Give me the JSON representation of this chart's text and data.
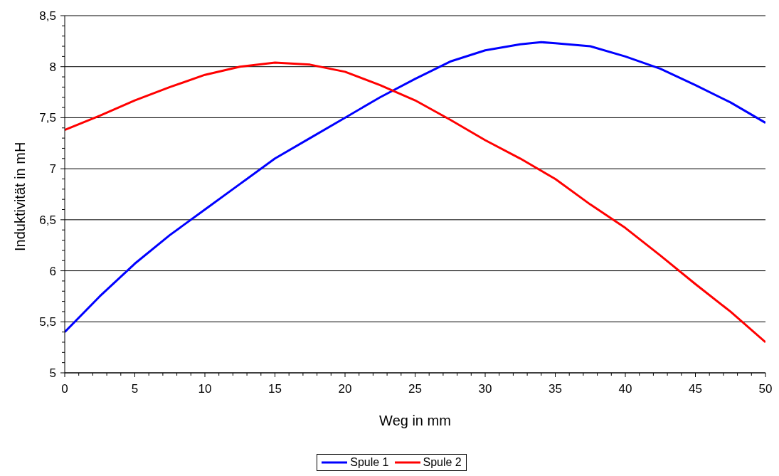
{
  "chart_data": {
    "type": "line",
    "xlabel": "Weg in mm",
    "ylabel": "Induktivität in mH",
    "x": [
      0,
      2.5,
      5,
      7.5,
      10,
      12.5,
      15,
      17.5,
      20,
      22.5,
      25,
      27.5,
      30,
      32.5,
      34,
      35,
      37.5,
      40,
      42.5,
      45,
      47.5,
      50
    ],
    "series": [
      {
        "name": "Spule 1",
        "color": "#0000ff",
        "values": [
          5.4,
          5.75,
          6.07,
          6.35,
          6.6,
          6.85,
          7.1,
          7.3,
          7.5,
          7.7,
          7.88,
          8.05,
          8.16,
          8.22,
          8.24,
          8.23,
          8.2,
          8.1,
          7.98,
          7.82,
          7.65,
          7.45
        ]
      },
      {
        "name": "Spule 2",
        "color": "#ff0000",
        "values": [
          7.38,
          7.52,
          7.67,
          7.8,
          7.92,
          8.0,
          8.04,
          8.02,
          7.95,
          7.82,
          7.67,
          7.48,
          7.28,
          7.1,
          6.98,
          6.9,
          6.65,
          6.42,
          6.15,
          5.87,
          5.6,
          5.3
        ]
      }
    ],
    "xlim": [
      0,
      50
    ],
    "xticks": [
      0,
      {
        "value": 1,
        "label": null
      },
      {
        "value": 2,
        "label": null
      },
      {
        "value": 3,
        "label": null
      },
      {
        "value": 4,
        "label": null
      },
      5,
      {
        "value": 6,
        "label": null
      },
      {
        "value": 7,
        "label": null
      },
      {
        "value": 8,
        "label": null
      },
      {
        "value": 9,
        "label": null
      },
      10,
      {
        "value": 11,
        "label": null
      },
      {
        "value": 12,
        "label": null
      },
      {
        "value": 13,
        "label": null
      },
      {
        "value": 14,
        "label": null
      },
      15,
      {
        "value": 16,
        "label": null
      },
      {
        "value": 17,
        "label": null
      },
      {
        "value": 18,
        "label": null
      },
      {
        "value": 19,
        "label": null
      },
      20,
      {
        "value": 21,
        "label": null
      },
      {
        "value": 22,
        "label": null
      },
      {
        "value": 23,
        "label": null
      },
      {
        "value": 24,
        "label": null
      },
      25,
      {
        "value": 26,
        "label": null
      },
      {
        "value": 27,
        "label": null
      },
      {
        "value": 28,
        "label": null
      },
      {
        "value": 29,
        "label": null
      },
      30,
      {
        "value": 31,
        "label": null
      },
      {
        "value": 32,
        "label": null
      },
      {
        "value": 33,
        "label": null
      },
      {
        "value": 34,
        "label": null
      },
      35,
      {
        "value": 36,
        "label": null
      },
      {
        "value": 37,
        "label": null
      },
      {
        "value": 38,
        "label": null
      },
      {
        "value": 39,
        "label": null
      },
      40,
      {
        "value": 41,
        "label": null
      },
      {
        "value": 42,
        "label": null
      },
      {
        "value": 43,
        "label": null
      },
      {
        "value": 44,
        "label": null
      },
      45,
      {
        "value": 46,
        "label": null
      },
      {
        "value": 47,
        "label": null
      },
      {
        "value": 48,
        "label": null
      },
      {
        "value": 49,
        "label": null
      },
      50
    ],
    "ylim": [
      5,
      8.5
    ],
    "yticks": [
      5,
      {
        "value": 5.1,
        "label": null
      },
      {
        "value": 5.2,
        "label": null
      },
      {
        "value": 5.3,
        "label": null
      },
      {
        "value": 5.4,
        "label": null
      },
      {
        "value": 5.5,
        "label": "5,5"
      },
      {
        "value": 5.6,
        "label": null
      },
      {
        "value": 5.7,
        "label": null
      },
      {
        "value": 5.8,
        "label": null
      },
      {
        "value": 5.9,
        "label": null
      },
      6,
      {
        "value": 6.1,
        "label": null
      },
      {
        "value": 6.2,
        "label": null
      },
      {
        "value": 6.3,
        "label": null
      },
      {
        "value": 6.4,
        "label": null
      },
      {
        "value": 6.5,
        "label": "6,5"
      },
      {
        "value": 6.6,
        "label": null
      },
      {
        "value": 6.7,
        "label": null
      },
      {
        "value": 6.8,
        "label": null
      },
      {
        "value": 6.9,
        "label": null
      },
      7,
      {
        "value": 7.1,
        "label": null
      },
      {
        "value": 7.2,
        "label": null
      },
      {
        "value": 7.3,
        "label": null
      },
      {
        "value": 7.4,
        "label": null
      },
      {
        "value": 7.5,
        "label": "7,5"
      },
      {
        "value": 7.6,
        "label": null
      },
      {
        "value": 7.7,
        "label": null
      },
      {
        "value": 7.8,
        "label": null
      },
      {
        "value": 7.9,
        "label": null
      },
      8,
      {
        "value": 8.1,
        "label": null
      },
      {
        "value": 8.2,
        "label": null
      },
      {
        "value": 8.3,
        "label": null
      },
      {
        "value": 8.4,
        "label": null
      },
      {
        "value": 8.5,
        "label": "8,5"
      }
    ],
    "grid": "y",
    "legend": "bottom",
    "marker": "none",
    "line_style": "solid"
  }
}
